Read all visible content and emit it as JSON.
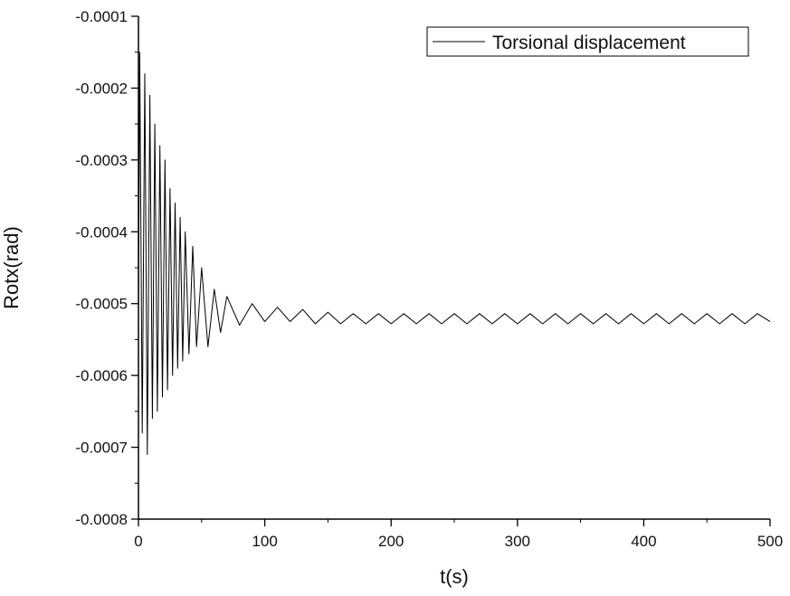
{
  "chart_data": {
    "type": "line",
    "xlabel": "t(s)",
    "ylabel": "Rotx(rad)",
    "xlim": [
      0,
      500
    ],
    "ylim": [
      -0.0008,
      -0.0001
    ],
    "x_ticks": [
      0,
      100,
      200,
      300,
      400,
      500
    ],
    "x_tick_labels": [
      "0",
      "100",
      "200",
      "300",
      "400",
      "500"
    ],
    "y_ticks": [
      -0.0001,
      -0.0002,
      -0.0003,
      -0.0004,
      -0.0005,
      -0.0006,
      -0.0007,
      -0.0008
    ],
    "y_tick_labels": [
      "-0.0001",
      "-0.0002",
      "-0.0003",
      "-0.0004",
      "-0.0005",
      "-0.0006",
      "-0.0007",
      "-0.0008"
    ],
    "grid": false,
    "legend_position": "top-right",
    "series": [
      {
        "name": "Torsional displacement",
        "color": "#000000",
        "x": [
          0,
          1,
          3,
          5,
          7,
          9,
          11,
          13,
          15,
          17,
          19,
          21,
          23,
          25,
          27,
          29,
          31,
          33,
          35,
          37,
          40,
          43,
          46,
          50,
          55,
          60,
          65,
          70,
          80,
          90,
          100,
          110,
          120,
          130,
          140,
          150,
          160,
          170,
          180,
          190,
          200,
          210,
          220,
          230,
          240,
          250,
          260,
          270,
          280,
          290,
          300,
          310,
          320,
          330,
          340,
          350,
          360,
          370,
          380,
          390,
          400,
          410,
          420,
          430,
          440,
          450,
          460,
          470,
          480,
          490,
          500
        ],
        "y": [
          -0.00052,
          -0.00015,
          -0.00068,
          -0.00018,
          -0.00071,
          -0.00021,
          -0.00066,
          -0.00025,
          -0.00065,
          -0.00028,
          -0.00063,
          -0.0003,
          -0.00062,
          -0.00034,
          -0.0006,
          -0.00036,
          -0.00059,
          -0.00038,
          -0.00058,
          -0.0004,
          -0.00057,
          -0.00042,
          -0.00056,
          -0.00045,
          -0.00056,
          -0.00048,
          -0.00054,
          -0.00049,
          -0.00053,
          -0.0005,
          -0.000525,
          -0.000505,
          -0.000525,
          -0.000508,
          -0.000528,
          -0.000512,
          -0.000528,
          -0.000514,
          -0.000528,
          -0.000514,
          -0.000528,
          -0.000514,
          -0.000528,
          -0.000514,
          -0.000528,
          -0.000514,
          -0.000528,
          -0.000514,
          -0.000528,
          -0.000514,
          -0.000528,
          -0.000514,
          -0.000528,
          -0.000514,
          -0.000528,
          -0.000514,
          -0.000528,
          -0.000514,
          -0.000528,
          -0.000514,
          -0.000528,
          -0.000514,
          -0.000528,
          -0.000514,
          -0.000528,
          -0.000514,
          -0.000528,
          -0.000514,
          -0.000528,
          -0.000514,
          -0.000525
        ]
      }
    ]
  }
}
